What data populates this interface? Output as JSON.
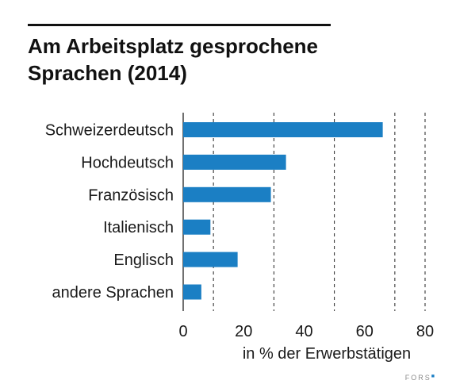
{
  "chart_data": {
    "type": "bar",
    "orientation": "horizontal",
    "title_lines": [
      "Am Arbeitsplatz gesprochene",
      "Sprachen (2014)"
    ],
    "categories": [
      "Schweizerdeutsch",
      "Hochdeutsch",
      "Französisch",
      "Italienisch",
      "Englisch",
      "andere Sprachen"
    ],
    "values": [
      66,
      34,
      29,
      9,
      18,
      6
    ],
    "xlabel": "in % der Erwerbstätigen",
    "xlim": [
      0,
      80
    ],
    "xticks": [
      0,
      20,
      40,
      60,
      80
    ],
    "grid": true,
    "grid_style": "dashed",
    "bar_color": "#1b7fc4"
  },
  "credit": "FORS"
}
